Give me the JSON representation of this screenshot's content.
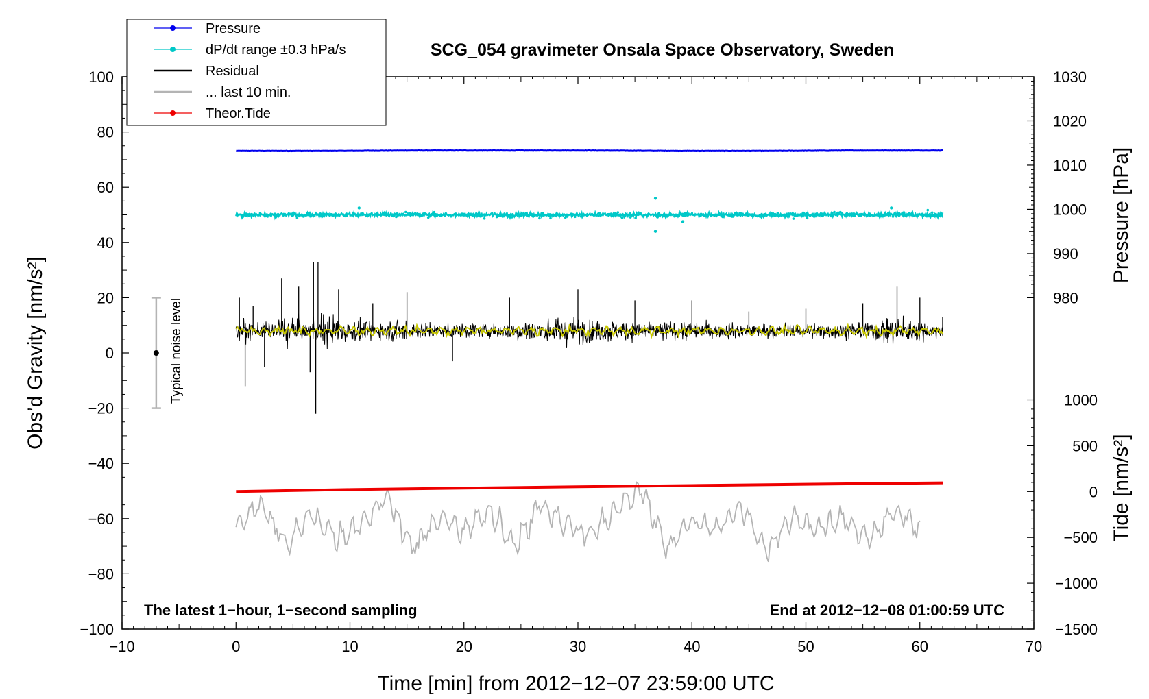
{
  "chart_data": {
    "type": "line",
    "title": "SCG_054 gravimeter Onsala Space Observatory, Sweden",
    "xlabel": "Time [min] from 2012−12−07 23:59:00 UTC",
    "ylabel_left": "Obs’d Gravity [nm/s²]",
    "ylabel_right_top": "Pressure [hPa]",
    "ylabel_right_bottom": "Tide [nm/s²]",
    "xlim": [
      -10,
      70
    ],
    "ylim": [
      -100,
      100
    ],
    "pressure_axis_lim": [
      980,
      1030
    ],
    "tide_axis_lim": [
      -1500,
      1000
    ],
    "grid": false,
    "legend_position": "top-left",
    "x_ticks": [
      "−10",
      "0",
      "10",
      "20",
      "30",
      "40",
      "50",
      "60",
      "70"
    ],
    "y_ticks": [
      "100",
      "80",
      "60",
      "40",
      "20",
      "0",
      "−20",
      "−40",
      "−60",
      "−80",
      "−100"
    ],
    "pressure_ticks": [
      "1030",
      "1020",
      "1010",
      "1000",
      "990",
      "980"
    ],
    "tide_ticks": [
      "1000",
      "500",
      "0",
      "−500",
      "−1000",
      "−1500"
    ],
    "legend": [
      {
        "label": "Pressure",
        "color": "#0000ee",
        "marker": true
      },
      {
        "label": "dP/dt range ±0.3 hPa/s",
        "color": "#00c8c8",
        "marker": true
      },
      {
        "label": "Residual",
        "color": "#000000",
        "marker": false
      },
      {
        "label": "... last 10 min.",
        "color": "#b4b4b4",
        "marker": false
      },
      {
        "label": "Theor.Tide",
        "color": "#ee0000",
        "marker": true
      }
    ],
    "annotations": {
      "left": "The latest 1−hour, 1−second sampling",
      "right": "End at 2012−12−08 01:00:59 UTC",
      "noise": "Typical noise level"
    },
    "noise_bar": {
      "x": -7,
      "center": 0,
      "range": [
        -20,
        20
      ]
    },
    "series": [
      {
        "name": "Pressure",
        "color": "#0000ee",
        "unit": "hPa",
        "x_range": [
          0,
          62
        ],
        "values": [
          1013.2,
          1013.2,
          1013.3,
          1013.3,
          1013.3,
          1013.2,
          1013.2,
          1013.3,
          1013.3
        ]
      },
      {
        "name": "dP/dt range",
        "color": "#00c8c8",
        "display_level_nm_s2": 50,
        "x_range": [
          0,
          62
        ],
        "outliers": [
          {
            "x": 10.8,
            "y": 52.5
          },
          {
            "x": 36.8,
            "y": 56
          },
          {
            "x": 36.8,
            "y": 44
          },
          {
            "x": 39.2,
            "y": 47.5
          },
          {
            "x": 57.5,
            "y": 52.5
          }
        ]
      },
      {
        "name": "Residual",
        "color": "#000000",
        "unit": "nm/s²",
        "x_range": [
          0,
          62
        ],
        "base_level": 8,
        "x": [
          0.3,
          0.8,
          1.5,
          2.5,
          4.0,
          5.5,
          6.5,
          6.8,
          7.0,
          7.2,
          9.0,
          12.0,
          15.0,
          19.0,
          24.0,
          30.0,
          35.0,
          40.0,
          45.0,
          50.0,
          55.0,
          58.0,
          60.0,
          62.0
        ],
        "values": [
          20,
          -12,
          17,
          -5,
          27,
          24,
          -7,
          33,
          -22,
          33,
          23,
          18,
          22,
          -3,
          20,
          23,
          19,
          19,
          15,
          16,
          18,
          24,
          20,
          13
        ]
      },
      {
        "name": "... last 10 min.",
        "color": "#b4b4b4",
        "unit": "nm/s²",
        "x_range": [
          0,
          60
        ],
        "base_level": -63,
        "values": [
          -62,
          -55,
          -70,
          -58,
          -67,
          -61,
          -52,
          -71,
          -60,
          -64,
          -58,
          -69,
          -55,
          -62,
          -66,
          -57,
          -49,
          -70,
          -61,
          -63,
          -56,
          -72,
          -59,
          -64,
          -60,
          -67,
          -58,
          -62
        ]
      },
      {
        "name": "Theor.Tide",
        "color": "#ee0000",
        "unit": "nm/s²",
        "x": [
          0,
          10,
          20,
          30,
          40,
          50,
          62
        ],
        "values": [
          0,
          22,
          38,
          52,
          66,
          80,
          95
        ]
      }
    ]
  }
}
